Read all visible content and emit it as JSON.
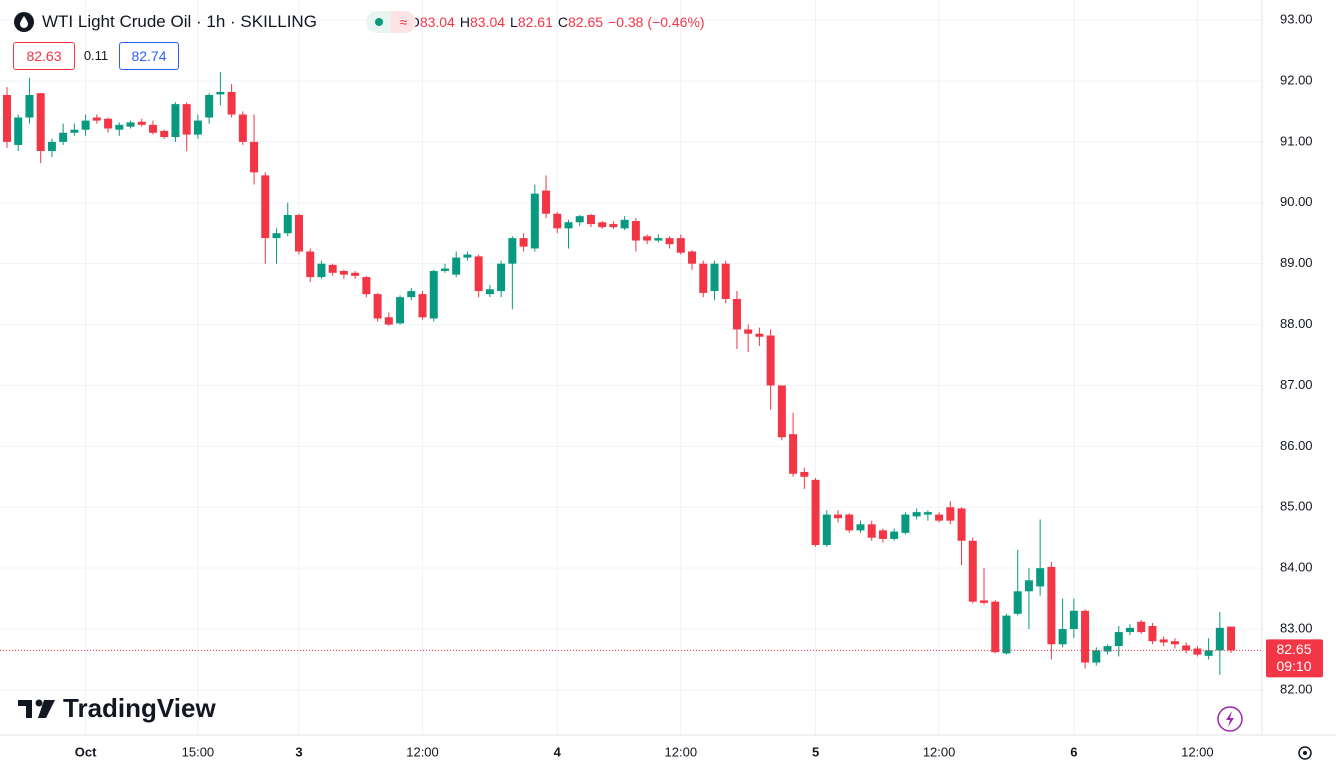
{
  "chart_data": {
    "type": "candlestick",
    "title": "WTI Light Crude Oil · 1h · SKILLING",
    "legend_labels": {
      "open": "O",
      "high": "H",
      "low": "L",
      "close": "C"
    },
    "change": "−0.38 (−0.46%)",
    "bid": 82.63,
    "spread": 0.11,
    "ask": 82.74,
    "countdown": "09:10",
    "brand": "TradingView",
    "up_color": "#089981",
    "down_color": "#f23645",
    "grid": true,
    "categories": [
      null,
      null,
      null,
      null,
      null,
      null,
      null,
      "Oct",
      null,
      null,
      null,
      null,
      null,
      null,
      null,
      null,
      null,
      "15:00",
      null,
      null,
      null,
      null,
      null,
      null,
      null,
      null,
      "3",
      null,
      null,
      null,
      null,
      null,
      null,
      null,
      null,
      null,
      null,
      "12:00",
      null,
      null,
      null,
      null,
      null,
      null,
      null,
      null,
      null,
      null,
      null,
      "4",
      null,
      null,
      null,
      null,
      null,
      null,
      null,
      null,
      null,
      null,
      "12:00",
      null,
      null,
      null,
      null,
      null,
      null,
      null,
      null,
      null,
      null,
      null,
      "5",
      null,
      null,
      null,
      null,
      null,
      null,
      null,
      null,
      null,
      null,
      "12:00",
      null,
      null,
      null,
      null,
      null,
      null,
      null,
      null,
      null,
      null,
      null,
      "6",
      null,
      null,
      null,
      null,
      null,
      null,
      null,
      null,
      null,
      null,
      "12:00",
      null,
      null,
      null
    ],
    "open": [
      91.77,
      90.95,
      91.4,
      91.8,
      90.85,
      91.0,
      91.15,
      91.2,
      91.4,
      91.38,
      91.2,
      91.25,
      91.33,
      91.28,
      91.18,
      91.08,
      91.62,
      91.12,
      91.4,
      91.78,
      91.82,
      91.45,
      91.0,
      90.45,
      89.42,
      89.5,
      89.8,
      89.2,
      88.78,
      88.98,
      88.88,
      88.85,
      88.78,
      88.5,
      88.12,
      88.02,
      88.45,
      88.5,
      88.1,
      88.88,
      88.82,
      89.1,
      89.12,
      88.5,
      88.55,
      89.0,
      89.42,
      89.25,
      90.2,
      89.82,
      89.58,
      89.68,
      89.8,
      89.68,
      89.65,
      89.58,
      89.7,
      89.45,
      89.38,
      89.42,
      89.42,
      89.2,
      89.0,
      88.55,
      89.0,
      88.42,
      87.92,
      87.85,
      87.82,
      87.0,
      86.2,
      85.58,
      85.45,
      84.38,
      84.88,
      84.88,
      84.62,
      84.72,
      84.62,
      84.48,
      84.58,
      84.85,
      84.88,
      84.88,
      85.0,
      84.98,
      84.45,
      83.47,
      83.45,
      82.6,
      83.25,
      83.62,
      83.7,
      84.02,
      82.75,
      83.0,
      83.3,
      82.45,
      82.63,
      82.72,
      82.95,
      83.12,
      83.05,
      82.83,
      82.8,
      82.73,
      82.68,
      82.56,
      82.65,
      83.04
    ],
    "high": [
      91.9,
      91.45,
      92.05,
      91.8,
      91.05,
      91.3,
      91.3,
      91.45,
      91.45,
      91.4,
      91.32,
      91.35,
      91.38,
      91.35,
      91.2,
      91.65,
      91.65,
      91.45,
      91.8,
      92.15,
      91.95,
      91.5,
      91.45,
      90.5,
      89.58,
      90.0,
      89.82,
      89.25,
      89.05,
      89.0,
      88.9,
      88.88,
      88.8,
      88.52,
      88.2,
      88.48,
      88.6,
      88.55,
      88.9,
      89.0,
      89.2,
      89.2,
      89.15,
      88.65,
      89.05,
      89.45,
      89.5,
      90.3,
      90.45,
      89.85,
      89.72,
      89.8,
      89.82,
      89.7,
      89.7,
      89.78,
      89.75,
      89.48,
      89.48,
      89.45,
      89.48,
      89.22,
      89.05,
      89.05,
      89.05,
      88.55,
      88.0,
      87.95,
      87.92,
      87.0,
      86.55,
      85.65,
      85.48,
      84.95,
      84.95,
      84.9,
      84.78,
      84.78,
      84.65,
      84.65,
      84.92,
      84.98,
      84.95,
      84.92,
      85.1,
      85.0,
      84.5,
      84.0,
      83.48,
      83.25,
      84.3,
      84.0,
      84.8,
      84.1,
      83.5,
      83.5,
      83.32,
      82.7,
      82.75,
      83.05,
      83.08,
      83.15,
      83.1,
      82.88,
      82.85,
      82.78,
      82.72,
      82.85,
      83.28,
      83.04
    ],
    "low": [
      90.9,
      90.85,
      91.3,
      90.65,
      90.75,
      90.95,
      91.1,
      91.1,
      91.3,
      91.15,
      91.1,
      91.22,
      91.25,
      91.12,
      91.05,
      91.0,
      90.85,
      91.05,
      91.3,
      91.6,
      91.4,
      90.95,
      90.3,
      89.0,
      89.0,
      89.45,
      89.15,
      88.7,
      88.75,
      88.8,
      88.75,
      88.75,
      88.45,
      88.05,
      87.98,
      88.0,
      88.4,
      88.08,
      88.05,
      88.85,
      88.78,
      89.05,
      88.45,
      88.45,
      88.45,
      88.25,
      89.2,
      89.2,
      89.75,
      89.5,
      89.25,
      89.62,
      89.6,
      89.57,
      89.57,
      89.55,
      89.2,
      89.32,
      89.35,
      89.25,
      89.15,
      88.9,
      88.45,
      88.4,
      88.35,
      87.6,
      87.55,
      87.65,
      86.6,
      86.1,
      85.5,
      85.3,
      84.35,
      84.35,
      84.75,
      84.58,
      84.58,
      84.45,
      84.42,
      84.45,
      84.55,
      84.8,
      84.78,
      84.75,
      84.72,
      84.05,
      83.42,
      83.4,
      82.6,
      82.58,
      83.22,
      83.0,
      83.55,
      82.5,
      82.7,
      82.85,
      82.35,
      82.4,
      82.58,
      82.55,
      82.9,
      82.92,
      82.75,
      82.72,
      82.68,
      82.6,
      82.55,
      82.5,
      82.25,
      82.61
    ],
    "close": [
      91.0,
      91.4,
      91.77,
      90.85,
      91.0,
      91.15,
      91.2,
      91.35,
      91.35,
      91.22,
      91.28,
      91.32,
      91.28,
      91.15,
      91.08,
      91.62,
      91.12,
      91.35,
      91.77,
      91.82,
      91.45,
      91.0,
      90.5,
      89.42,
      89.5,
      89.8,
      89.2,
      88.78,
      89.0,
      88.85,
      88.82,
      88.8,
      88.5,
      88.1,
      88.0,
      88.45,
      88.55,
      88.12,
      88.88,
      88.92,
      89.1,
      89.15,
      88.55,
      88.58,
      89.0,
      89.42,
      89.28,
      90.15,
      89.82,
      89.58,
      89.68,
      89.78,
      89.65,
      89.6,
      89.6,
      89.72,
      89.38,
      89.38,
      89.42,
      89.32,
      89.18,
      89.0,
      88.52,
      89.0,
      88.42,
      87.92,
      87.85,
      87.8,
      87.0,
      86.15,
      85.55,
      85.5,
      84.38,
      84.88,
      84.82,
      84.62,
      84.72,
      84.5,
      84.48,
      84.6,
      84.88,
      84.92,
      84.92,
      84.78,
      84.78,
      84.45,
      83.45,
      83.43,
      82.62,
      83.22,
      83.62,
      83.8,
      84.0,
      82.75,
      83.0,
      83.3,
      82.45,
      82.65,
      82.72,
      82.95,
      83.02,
      82.95,
      82.8,
      82.78,
      82.75,
      82.65,
      82.58,
      82.65,
      83.02,
      82.65
    ],
    "ylim": [
      81.26,
      93.33
    ],
    "yticks": [
      {
        "value": 82,
        "label": "82.00"
      },
      {
        "value": 83,
        "label": "83.00"
      },
      {
        "value": 84,
        "label": "84.00"
      },
      {
        "value": 85,
        "label": "85.00"
      },
      {
        "value": 86,
        "label": "86.00"
      },
      {
        "value": 87,
        "label": "87.00"
      },
      {
        "value": 88,
        "label": "88.00"
      },
      {
        "value": 89,
        "label": "89.00"
      },
      {
        "value": 90,
        "label": "90.00"
      },
      {
        "value": 91,
        "label": "91.00"
      },
      {
        "value": 92,
        "label": "92.00"
      },
      {
        "value": 93,
        "label": "93.00"
      }
    ]
  }
}
